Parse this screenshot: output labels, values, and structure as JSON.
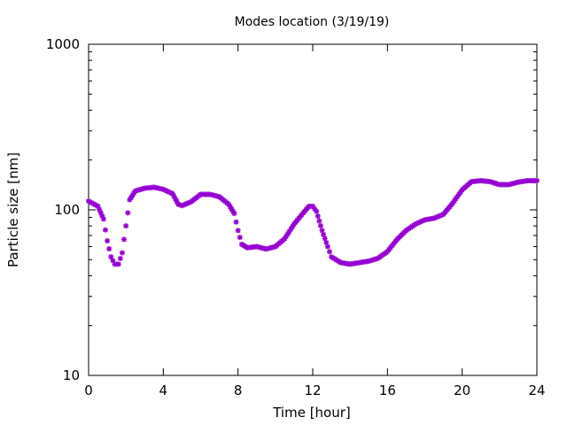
{
  "chart_data": {
    "type": "scatter",
    "title": "Modes location (3/19/19)",
    "xlabel": "Time [hour]",
    "ylabel": "Particle size [nm]",
    "xlim": [
      0,
      24
    ],
    "ylim": [
      10,
      1000
    ],
    "yscale": "log",
    "xticks": [
      0,
      4,
      8,
      12,
      16,
      20,
      24
    ],
    "yticks": [
      10,
      100,
      1000
    ],
    "marker_color": "#9400d3",
    "grid": false,
    "series": [
      {
        "x": [
          0.0,
          0.5,
          0.8,
          1.0,
          1.2,
          1.4,
          1.6,
          1.8,
          2.0,
          2.2,
          2.5,
          3.0,
          3.5,
          4.0,
          4.5,
          4.8,
          5.0,
          5.5,
          6.0,
          6.5,
          7.0,
          7.5,
          7.8,
          8.0,
          8.2,
          8.5,
          9.0,
          9.5,
          10.0,
          10.5,
          11.0,
          11.5,
          11.8,
          12.0,
          12.2,
          12.5,
          12.8,
          13.0,
          13.5,
          14.0,
          14.5,
          15.0,
          15.5,
          16.0,
          16.5,
          17.0,
          17.5,
          18.0,
          18.5,
          19.0,
          19.5,
          20.0,
          20.5,
          21.0,
          21.5,
          22.0,
          22.5,
          23.0,
          23.5,
          24.0
        ],
        "y": [
          113,
          105,
          88,
          65,
          52,
          47,
          47,
          55,
          80,
          115,
          130,
          135,
          137,
          133,
          125,
          108,
          106,
          112,
          124,
          124,
          120,
          108,
          95,
          75,
          62,
          59,
          60,
          58,
          60,
          67,
          82,
          96,
          105,
          105,
          98,
          75,
          60,
          52,
          48,
          47,
          48,
          49,
          51,
          56,
          66,
          75,
          82,
          87,
          89,
          94,
          110,
          132,
          148,
          150,
          148,
          142,
          142,
          147,
          150,
          150
        ]
      }
    ]
  }
}
